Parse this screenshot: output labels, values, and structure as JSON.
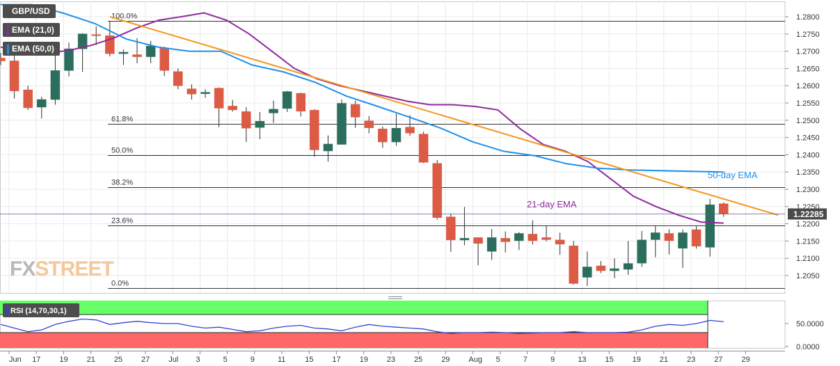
{
  "chart_data": {
    "type": "candlestick",
    "pair": "GBP/USD",
    "legend": [
      {
        "label": "GBP/USD",
        "color": "#4d4d4d"
      },
      {
        "label": "EMA (21,0)",
        "color": "#8e2a9c"
      },
      {
        "label": "EMA (50,0)",
        "color": "#1e90e8"
      }
    ],
    "y_ticks": [
      "1.2800",
      "1.2750",
      "1.2700",
      "1.2650",
      "1.2600",
      "1.2550",
      "1.2500",
      "1.2450",
      "1.2400",
      "1.2350",
      "1.2300",
      "1.2250",
      "1.2200",
      "1.2150",
      "1.2100",
      "1.2050"
    ],
    "ylim": [
      1.2014,
      1.2835
    ],
    "current_price": "1.22285",
    "current_price_value": 1.22285,
    "x_labels": [
      "Jun",
      "17",
      "19",
      "21",
      "25",
      "27",
      "Jul",
      "3",
      "5",
      "9",
      "11",
      "15",
      "17",
      "19",
      "23",
      "25",
      "29",
      "Aug",
      "5",
      "7",
      "9",
      "13",
      "15",
      "19",
      "21",
      "23",
      "27",
      "29"
    ],
    "fib_levels": [
      {
        "label": "100.0%",
        "price": 1.2787
      },
      {
        "label": "61.8%",
        "price": 1.249
      },
      {
        "label": "50.0%",
        "price": 1.2398
      },
      {
        "label": "38.2%",
        "price": 1.2306
      },
      {
        "label": "23.6%",
        "price": 1.2196
      },
      {
        "label": "0.0%",
        "price": 1.2014
      }
    ],
    "candles": [
      {
        "o": 1.268,
        "h": 1.2695,
        "l": 1.266,
        "c": 1.2672
      },
      {
        "o": 1.2672,
        "h": 1.2695,
        "l": 1.2563,
        "c": 1.2585
      },
      {
        "o": 1.2588,
        "h": 1.26,
        "l": 1.253,
        "c": 1.2536
      },
      {
        "o": 1.2538,
        "h": 1.2568,
        "l": 1.2505,
        "c": 1.256
      },
      {
        "o": 1.256,
        "h": 1.2693,
        "l": 1.2545,
        "c": 1.2644
      },
      {
        "o": 1.2644,
        "h": 1.2725,
        "l": 1.2627,
        "c": 1.2707
      },
      {
        "o": 1.2707,
        "h": 1.2752,
        "l": 1.264,
        "c": 1.275
      },
      {
        "o": 1.2748,
        "h": 1.2772,
        "l": 1.2718,
        "c": 1.2745
      },
      {
        "o": 1.2745,
        "h": 1.2788,
        "l": 1.2685,
        "c": 1.2693
      },
      {
        "o": 1.2693,
        "h": 1.2705,
        "l": 1.266,
        "c": 1.2697
      },
      {
        "o": 1.269,
        "h": 1.2738,
        "l": 1.2665,
        "c": 1.2684
      },
      {
        "o": 1.2684,
        "h": 1.273,
        "l": 1.2665,
        "c": 1.2715
      },
      {
        "o": 1.2709,
        "h": 1.2713,
        "l": 1.2628,
        "c": 1.2644
      },
      {
        "o": 1.2641,
        "h": 1.265,
        "l": 1.259,
        "c": 1.26
      },
      {
        "o": 1.2591,
        "h": 1.2604,
        "l": 1.256,
        "c": 1.2576
      },
      {
        "o": 1.2577,
        "h": 1.259,
        "l": 1.2565,
        "c": 1.2581
      },
      {
        "o": 1.2593,
        "h": 1.2595,
        "l": 1.248,
        "c": 1.2535
      },
      {
        "o": 1.2541,
        "h": 1.2559,
        "l": 1.2525,
        "c": 1.253
      },
      {
        "o": 1.2525,
        "h": 1.2538,
        "l": 1.2437,
        "c": 1.2477
      },
      {
        "o": 1.2479,
        "h": 1.2524,
        "l": 1.2445,
        "c": 1.2497
      },
      {
        "o": 1.2521,
        "h": 1.2557,
        "l": 1.2492,
        "c": 1.2532
      },
      {
        "o": 1.2534,
        "h": 1.2585,
        "l": 1.2524,
        "c": 1.2583
      },
      {
        "o": 1.2578,
        "h": 1.258,
        "l": 1.2511,
        "c": 1.2526
      },
      {
        "o": 1.2529,
        "h": 1.2532,
        "l": 1.2394,
        "c": 1.2414
      },
      {
        "o": 1.2411,
        "h": 1.2456,
        "l": 1.238,
        "c": 1.2431
      },
      {
        "o": 1.243,
        "h": 1.256,
        "l": 1.243,
        "c": 1.2549
      },
      {
        "o": 1.2546,
        "h": 1.2557,
        "l": 1.2478,
        "c": 1.2509
      },
      {
        "o": 1.2498,
        "h": 1.2512,
        "l": 1.2462,
        "c": 1.2478
      },
      {
        "o": 1.2475,
        "h": 1.2482,
        "l": 1.242,
        "c": 1.2437
      },
      {
        "o": 1.2437,
        "h": 1.2519,
        "l": 1.2426,
        "c": 1.2477
      },
      {
        "o": 1.248,
        "h": 1.2515,
        "l": 1.2455,
        "c": 1.2463
      },
      {
        "o": 1.246,
        "h": 1.2467,
        "l": 1.2376,
        "c": 1.2378
      },
      {
        "o": 1.2375,
        "h": 1.2385,
        "l": 1.2212,
        "c": 1.2218
      },
      {
        "o": 1.222,
        "h": 1.223,
        "l": 1.2119,
        "c": 1.2153
      },
      {
        "o": 1.2153,
        "h": 1.2249,
        "l": 1.2138,
        "c": 1.2158
      },
      {
        "o": 1.216,
        "h": 1.2161,
        "l": 1.208,
        "c": 1.2143
      },
      {
        "o": 1.212,
        "h": 1.2185,
        "l": 1.2095,
        "c": 1.216
      },
      {
        "o": 1.2158,
        "h": 1.2178,
        "l": 1.2117,
        "c": 1.2148
      },
      {
        "o": 1.2151,
        "h": 1.2176,
        "l": 1.2124,
        "c": 1.2172
      },
      {
        "o": 1.217,
        "h": 1.221,
        "l": 1.214,
        "c": 1.2151
      },
      {
        "o": 1.216,
        "h": 1.2195,
        "l": 1.2149,
        "c": 1.2154
      },
      {
        "o": 1.2153,
        "h": 1.2174,
        "l": 1.211,
        "c": 1.2141
      },
      {
        "o": 1.2136,
        "h": 1.215,
        "l": 1.2024,
        "c": 1.2027
      },
      {
        "o": 1.2045,
        "h": 1.212,
        "l": 1.202,
        "c": 1.2075
      },
      {
        "o": 1.2078,
        "h": 1.2092,
        "l": 1.2057,
        "c": 1.2064
      },
      {
        "o": 1.2064,
        "h": 1.21,
        "l": 1.2042,
        "c": 1.207
      },
      {
        "o": 1.2068,
        "h": 1.215,
        "l": 1.2052,
        "c": 1.2085
      },
      {
        "o": 1.2086,
        "h": 1.2179,
        "l": 1.2075,
        "c": 1.2153
      },
      {
        "o": 1.2154,
        "h": 1.2195,
        "l": 1.2103,
        "c": 1.2174
      },
      {
        "o": 1.2172,
        "h": 1.2184,
        "l": 1.2111,
        "c": 1.2151
      },
      {
        "o": 1.2129,
        "h": 1.2183,
        "l": 1.2072,
        "c": 1.2174
      },
      {
        "o": 1.2183,
        "h": 1.2193,
        "l": 1.2128,
        "c": 1.2135
      },
      {
        "o": 1.2132,
        "h": 1.2272,
        "l": 1.2105,
        "c": 1.2255
      },
      {
        "o": 1.2258,
        "h": 1.2262,
        "l": 1.222,
        "c": 1.2228
      }
    ],
    "ema21": [
      [
        1.2712,
        1.2712
      ],
      [
        1.2693,
        1.2704
      ],
      [
        1.2695,
        1.2683
      ],
      [
        1.2702,
        1.2686
      ],
      [
        1.2717,
        1.2695
      ],
      [
        1.2738,
        1.272
      ],
      [
        1.2767,
        1.2758
      ],
      [
        1.279,
        1.2792
      ],
      [
        1.28,
        1.275
      ],
      [
        1.2811,
        1.27
      ],
      [
        1.279,
        1.2693
      ],
      [
        1.275,
        1.2696
      ],
      [
        1.27,
        1.2689
      ],
      [
        1.265,
        1.266
      ],
      [
        1.262,
        1.2632
      ],
      [
        1.26,
        1.261
      ],
      [
        1.2585,
        1.259
      ],
      [
        1.257,
        1.2572
      ],
      [
        1.2555,
        1.2564
      ],
      [
        1.2545,
        1.255
      ],
      [
        1.2545,
        1.2543
      ],
      [
        1.254,
        1.2537
      ],
      [
        1.253,
        1.2527
      ],
      [
        1.2475,
        1.2468
      ],
      [
        1.243,
        1.2426
      ],
      [
        1.241,
        1.2393
      ],
      [
        1.238,
        1.2368
      ],
      [
        1.233,
        1.232
      ],
      [
        1.228,
        1.2275
      ],
      [
        1.225,
        1.2248
      ],
      [
        1.2225,
        1.222
      ],
      [
        1.2205,
        1.22
      ],
      [
        1.2202,
        1.22
      ]
    ],
    "ema50": [
      [
        1.2835,
        1.2827
      ],
      [
        1.2835,
        1.2814
      ],
      [
        1.281,
        1.279
      ],
      [
        1.278,
        1.2756
      ],
      [
        1.2735,
        1.2726
      ],
      [
        1.2712,
        1.2703
      ],
      [
        1.27,
        1.2699
      ],
      [
        1.27,
        1.2672
      ],
      [
        1.266,
        1.2648
      ],
      [
        1.264,
        1.2625
      ],
      [
        1.261,
        1.2585
      ],
      [
        1.257,
        1.2551
      ],
      [
        1.254,
        1.2525
      ],
      [
        1.2509,
        1.2494
      ],
      [
        1.2477,
        1.2455
      ],
      [
        1.2438,
        1.242
      ],
      [
        1.241,
        1.2402
      ],
      [
        1.2397,
        1.2384
      ],
      [
        1.2374,
        1.2364
      ],
      [
        1.2361,
        1.2356
      ],
      [
        1.2356,
        1.2355
      ],
      [
        1.2354,
        1.2353
      ],
      [
        1.2352,
        1.2351
      ],
      [
        1.235,
        1.235
      ]
    ],
    "trendline": {
      "from": [
        8,
        1.28
      ],
      "to": [
        57,
        1.2225
      ]
    },
    "annotations": [
      {
        "text": "50-day EMA",
        "color": "#1e90e8"
      },
      {
        "text": "21-day EMA",
        "color": "#8e2a9c"
      }
    ],
    "colors": {
      "bull": "#2c6e5e",
      "bear": "#dd5a45",
      "wick": "#2d2d2d",
      "ema21": "#8e2a9c",
      "ema50": "#1e90e8",
      "trend": "#f5961e",
      "fib": "#333333",
      "price_label_bg": "#4a4a4a"
    },
    "rsi": {
      "label": "RSI (14,70,30,1)",
      "ticks": [
        "50.0000",
        "0.0000"
      ],
      "ylim": [
        0,
        100
      ],
      "overbought": 70,
      "oversold": 30,
      "overbought_color": "#66ff66",
      "oversold_color": "#ff6666",
      "values": [
        48,
        40,
        32,
        36,
        48,
        55,
        60,
        58,
        48,
        52,
        55,
        52,
        50,
        50,
        44,
        40,
        42,
        37,
        32,
        34,
        40,
        44,
        46,
        40,
        38,
        34,
        42,
        48,
        44,
        42,
        40,
        38,
        32,
        28,
        30,
        30,
        31,
        30,
        28,
        29,
        30,
        30,
        32,
        30,
        30,
        30,
        31,
        36,
        44,
        48,
        46,
        50,
        57,
        54
      ]
    },
    "logo": {
      "fx": "FX",
      "rest": "STREET"
    }
  }
}
